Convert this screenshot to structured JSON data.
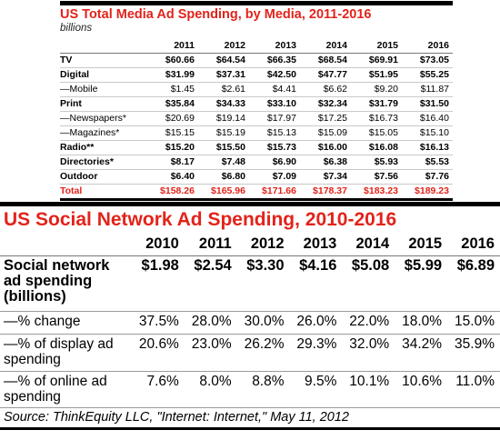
{
  "chart_data": [
    {
      "type": "table",
      "title": "US Total Media Ad Spending, by Media, 2011-2016",
      "subtitle": "billions",
      "columns": [
        "2011",
        "2012",
        "2013",
        "2014",
        "2015",
        "2016"
      ],
      "rows": [
        {
          "label": "TV",
          "bold": true,
          "values": [
            "$60.66",
            "$64.54",
            "$66.35",
            "$68.54",
            "$69.91",
            "$73.05"
          ]
        },
        {
          "label": "Digital",
          "bold": true,
          "values": [
            "$31.99",
            "$37.31",
            "$42.50",
            "$47.77",
            "$51.95",
            "$55.25"
          ]
        },
        {
          "label": "—Mobile",
          "bold": false,
          "values": [
            "$1.45",
            "$2.61",
            "$4.41",
            "$6.62",
            "$9.20",
            "$11.87"
          ]
        },
        {
          "label": "Print",
          "bold": true,
          "values": [
            "$35.84",
            "$34.33",
            "$33.10",
            "$32.34",
            "$31.79",
            "$31.50"
          ]
        },
        {
          "label": "—Newspapers*",
          "bold": false,
          "values": [
            "$20.69",
            "$19.14",
            "$17.97",
            "$17.25",
            "$16.73",
            "$16.40"
          ]
        },
        {
          "label": "—Magazines*",
          "bold": false,
          "values": [
            "$15.15",
            "$15.19",
            "$15.13",
            "$15.09",
            "$15.05",
            "$15.10"
          ]
        },
        {
          "label": "Radio**",
          "bold": true,
          "values": [
            "$15.20",
            "$15.50",
            "$15.73",
            "$16.00",
            "$16.08",
            "$16.13"
          ]
        },
        {
          "label": "Directories*",
          "bold": true,
          "values": [
            "$8.17",
            "$7.48",
            "$6.90",
            "$6.38",
            "$5.93",
            "$5.53"
          ]
        },
        {
          "label": "Outdoor",
          "bold": true,
          "values": [
            "$6.40",
            "$6.80",
            "$7.09",
            "$7.34",
            "$7.56",
            "$7.76"
          ]
        },
        {
          "label": "Total",
          "bold": true,
          "total": true,
          "values": [
            "$158.26",
            "$165.96",
            "$171.66",
            "$178.37",
            "$183.23",
            "$189.23"
          ]
        }
      ]
    },
    {
      "type": "table",
      "title": "US Social Network Ad Spending, 2010-2016",
      "columns": [
        "2010",
        "2011",
        "2012",
        "2013",
        "2014",
        "2015",
        "2016"
      ],
      "rows": [
        {
          "label": "Social network ad spending (billions)",
          "values": [
            "$1.98",
            "$2.54",
            "$3.30",
            "$4.16",
            "$5.08",
            "$5.99",
            "$6.89"
          ]
        },
        {
          "label": "—% change",
          "values": [
            "37.5%",
            "28.0%",
            "30.0%",
            "26.0%",
            "22.0%",
            "18.0%",
            "15.0%"
          ]
        },
        {
          "label": "—% of display ad spending",
          "values": [
            "20.6%",
            "23.0%",
            "26.2%",
            "29.3%",
            "32.0%",
            "34.2%",
            "35.9%"
          ]
        },
        {
          "label": "—% of online ad spending",
          "values": [
            "7.6%",
            "8.0%",
            "8.8%",
            "9.5%",
            "10.1%",
            "10.6%",
            "11.0%"
          ]
        }
      ],
      "source": "Source: ThinkEquity LLC, \"Internet: Internet,\" May 11, 2012"
    }
  ],
  "colors": {
    "accent": "#e2231a",
    "rule": "#000000"
  }
}
